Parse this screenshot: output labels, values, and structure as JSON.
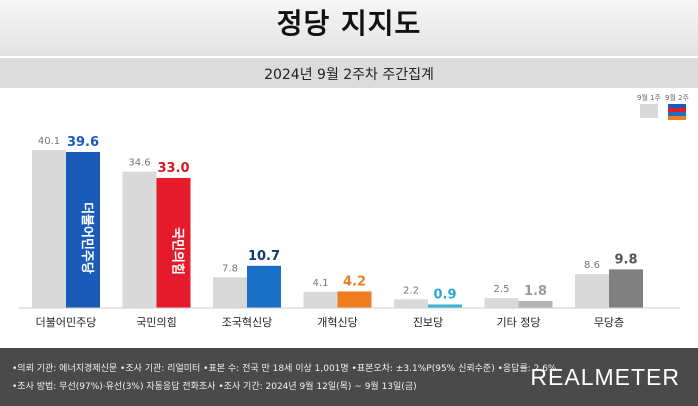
{
  "header": {
    "title": "정당 지지도",
    "subtitle": "2024년 9월 2주차 주간집계"
  },
  "legend": {
    "previous_label": "9월 1주",
    "current_label": "9월 2주"
  },
  "chart_data": {
    "type": "bar",
    "title": "정당 지지도",
    "subtitle": "2024년 9월 2주차 주간집계",
    "categories": [
      "더불어민주당",
      "국민의힘",
      "조국혁신당",
      "개혁신당",
      "진보당",
      "기타 정당",
      "무당층"
    ],
    "series": [
      {
        "name": "9월 1주",
        "values": [
          40.1,
          34.6,
          7.8,
          4.1,
          2.2,
          2.5,
          8.6
        ]
      },
      {
        "name": "9월 2주",
        "values": [
          39.6,
          33.0,
          10.7,
          4.2,
          0.9,
          1.8,
          9.8
        ]
      }
    ],
    "ylim": [
      0,
      45
    ],
    "grid": false,
    "legend_position": "top-right"
  },
  "colors": {
    "previous": "#d9d9d9",
    "current": [
      "#1a5ab8",
      "#e51a2b",
      "#1a6fc6",
      "#f07c20",
      "#3eb2d6",
      "#b3b3b3",
      "#808080"
    ],
    "current_text": [
      "#1a5ab8",
      "#d71921",
      "#123a70",
      "#f07c20",
      "#2aa7d3",
      "#9a9a9a",
      "#555555"
    ]
  },
  "bar_logos": {
    "더불어민주당": "더불어민주당",
    "국민의힘": "국민의힘"
  },
  "footer": {
    "note1": "•의뢰 기관: 에너지경제신문  •조사 기관: 리얼미터  •표본 수: 전국 만 18세 이상 1,001명  •표본오차: ±3.1%P(95% 신뢰수준)  •응답률: 2.6%",
    "note2": "•조사 방법: 무선(97%)·유선(3%) 자동응답 전화조사  •조사 기간: 2024년 9월 12일(목) ~ 9월 13일(금)",
    "brand": "REALMETER"
  }
}
